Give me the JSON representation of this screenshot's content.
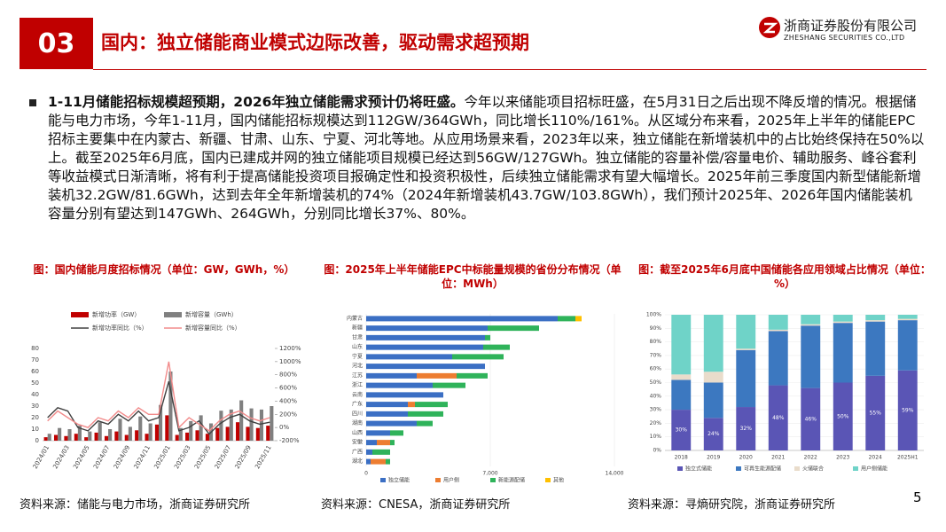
{
  "header": {
    "number": "03",
    "title": "国内：独立储能商业模式边际改善，驱动需求超预期",
    "logo_cn": "浙商证券股份有限公司",
    "logo_en": "ZHESHANG SECURITIES CO.,LTD"
  },
  "body": {
    "lead": "1-11月储能招标规模超预期，2026年独立储能需求预计仍将旺盛。",
    "text": "今年以来储能项目招标旺盛，在5月31日之后出现不降反增的情况。根据储能与电力市场，今年1-11月，国内储能招标规模达到112GW/364GWh，同比增长110%/161%。从区域分布来看，2025年上半年的储能EPC招标主要集中在内蒙古、新疆、甘肃、山东、宁夏、河北等地。从应用场景来看，2023年以来，独立储能在新增装机中的占比始终保持在50%以上。截至2025年6月底，国内已建成并网的独立储能项目规模已经达到56GW/127GWh。独立储能的容量补偿/容量电价、辅助服务、峰谷套利等收益模式日渐清晰，将有利于提高储能投资项目报确定性和投资积极性，后续独立储能需求有望大幅增长。2025年前三季度国内新型储能新增装机32.2GW/81.6GWh，达到去年全年新增装机的74%（2024年新增装机43.7GW/103.8GWh），我们预计2025年、2026年国内储能装机容量分别有望达到147GWh、264GWh，分别同比增长37%、80%。"
  },
  "chart_data": [
    {
      "type": "bar",
      "title": "图：国内储能月度招标情况（单位：GW，GWh，%）",
      "source": "资料来源：储能与电力市场，浙商证券研究所",
      "categories": [
        "2024/01",
        null,
        "2024/03",
        null,
        "2024/05",
        null,
        "2024/07",
        null,
        "2024/09",
        null,
        "2024/11",
        null,
        "2025/01",
        null,
        "2025/03",
        null,
        "2025/05",
        null,
        "2025/07",
        null,
        "2025/09",
        null,
        "2025/11"
      ],
      "series": [
        {
          "name": "新增功率（GW）",
          "type": "bar",
          "color": "#c00000",
          "values": [
            3,
            5,
            4,
            6,
            3,
            7,
            4,
            8,
            5,
            9,
            6,
            14,
            22,
            5,
            7,
            9,
            6,
            11,
            12,
            16,
            12,
            11,
            13
          ]
        },
        {
          "name": "新增容量（GWh）",
          "type": "bar",
          "color": "#808080",
          "values": [
            6,
            11,
            10,
            13,
            8,
            16,
            10,
            19,
            12,
            21,
            15,
            31,
            60,
            11,
            17,
            22,
            15,
            26,
            27,
            35,
            28,
            27,
            30
          ]
        },
        {
          "name": "新增功率同比（%）",
          "type": "line",
          "axis": "y2",
          "color": "#404040",
          "values": [
            150,
            300,
            250,
            0,
            -50,
            100,
            50,
            200,
            100,
            250,
            100,
            150,
            700,
            -50,
            0,
            100,
            -100,
            50,
            150,
            200,
            100,
            50,
            80
          ]
        },
        {
          "name": "新增容量同比（%）",
          "type": "line",
          "axis": "y2",
          "color": "#f28b8b",
          "values": [
            100,
            250,
            150,
            50,
            0,
            150,
            100,
            250,
            150,
            300,
            200,
            200,
            1000,
            0,
            150,
            50,
            -50,
            100,
            200,
            250,
            150,
            100,
            150
          ]
        }
      ],
      "ylim": [
        0,
        80
      ],
      "yticks": [
        0,
        10,
        20,
        30,
        40,
        50,
        60,
        70,
        80
      ],
      "y2lim": [
        -200,
        1200
      ],
      "y2ticks": [
        {
          "value": -200,
          "label": "-200%"
        },
        {
          "value": 0,
          "label": "0%"
        },
        {
          "value": 200,
          "label": "200%"
        },
        {
          "value": 400,
          "label": "400%"
        },
        {
          "value": 600,
          "label": "600%"
        },
        {
          "value": 800,
          "label": "800%"
        },
        {
          "value": 1000,
          "label": "1000%"
        },
        {
          "value": 1200,
          "label": "1200%"
        }
      ]
    },
    {
      "type": "bar",
      "orientation": "horizontal",
      "stacked": true,
      "title": "图：2025年上半年储能EPC中标能量规模的省份分布情况（单位：MWh）",
      "source": "资料来源：CNESA，浙商证券研究所",
      "categories": [
        "内蒙古",
        "新疆",
        "甘肃",
        "山东",
        "宁夏",
        "河北",
        "江苏",
        "浙江",
        "云南",
        "广东",
        "四川",
        "湖南",
        "山西",
        "安徽",
        "广西",
        "湖北"
      ],
      "series": [
        {
          "name": "独立储能",
          "color": "#3b6fc4",
          "values": [
            10800,
            6850,
            6700,
            6600,
            4850,
            6700,
            2850,
            3750,
            4350,
            2350,
            2350,
            2850,
            1350,
            600,
            350,
            250
          ]
        },
        {
          "name": "用户侧",
          "color": "#ed7d31",
          "values": [
            0,
            0,
            0,
            0,
            0,
            0,
            2250,
            0,
            0,
            400,
            0,
            0,
            0,
            750,
            0,
            850
          ]
        },
        {
          "name": "新能源配储",
          "color": "#2fb35a",
          "values": [
            1000,
            2900,
            300,
            1500,
            2900,
            0,
            1750,
            1850,
            0,
            1850,
            2000,
            900,
            750,
            250,
            1000,
            250
          ]
        },
        {
          "name": "其他",
          "color": "#ffc000",
          "values": [
            350,
            0,
            0,
            0,
            0,
            0,
            0,
            0,
            0,
            0,
            0,
            0,
            0,
            0,
            0,
            0
          ]
        }
      ],
      "xlim": [
        0,
        14000
      ],
      "xticks": [
        0,
        {
          "value": 7000,
          "label": "7,000"
        },
        {
          "value": 14000,
          "label": "14,000"
        }
      ]
    },
    {
      "type": "bar",
      "stacked": true,
      "title": "图：截至2025年6月底中国储能各应用领域占比情况（单位：%）",
      "source": "资料来源：寻熵研究院，浙商证券研究所",
      "categories": [
        "2018",
        "2019",
        "2020",
        "2021",
        "2022",
        "2023",
        "2024",
        "2025H1"
      ],
      "series": [
        {
          "name": "独立式储能",
          "color": "#5a55b5",
          "values": [
            30,
            24,
            32,
            48,
            46,
            50,
            55,
            59
          ],
          "value_labels": [
            "30%",
            "24%",
            "32%",
            "48%",
            "46%",
            "50%",
            "55%",
            "59%"
          ]
        },
        {
          "name": "可再生能源配储",
          "color": "#3c78c0",
          "values": [
            22,
            26,
            42,
            40,
            46,
            44,
            40,
            37
          ]
        },
        {
          "name": "火储联合",
          "color": "#e9dccb",
          "values": [
            4,
            8,
            1,
            1,
            1,
            1,
            1,
            1
          ]
        },
        {
          "name": "用户侧储能",
          "color": "#6fd3c8",
          "values": [
            44,
            42,
            25,
            11,
            7,
            5,
            4,
            3
          ]
        }
      ],
      "ylim": [
        0,
        100
      ],
      "yticks": [
        {
          "value": 0,
          "label": "0%"
        },
        {
          "value": 10,
          "label": "10%"
        },
        {
          "value": 20,
          "label": "20%"
        },
        {
          "value": 30,
          "label": "30%"
        },
        {
          "value": 40,
          "label": "40%"
        },
        {
          "value": 50,
          "label": "50%"
        },
        {
          "value": 60,
          "label": "60%"
        },
        {
          "value": 70,
          "label": "70%"
        },
        {
          "value": 80,
          "label": "80%"
        },
        {
          "value": 90,
          "label": "90%"
        },
        {
          "value": 100,
          "label": "100%"
        }
      ]
    }
  ],
  "page_number": "5"
}
